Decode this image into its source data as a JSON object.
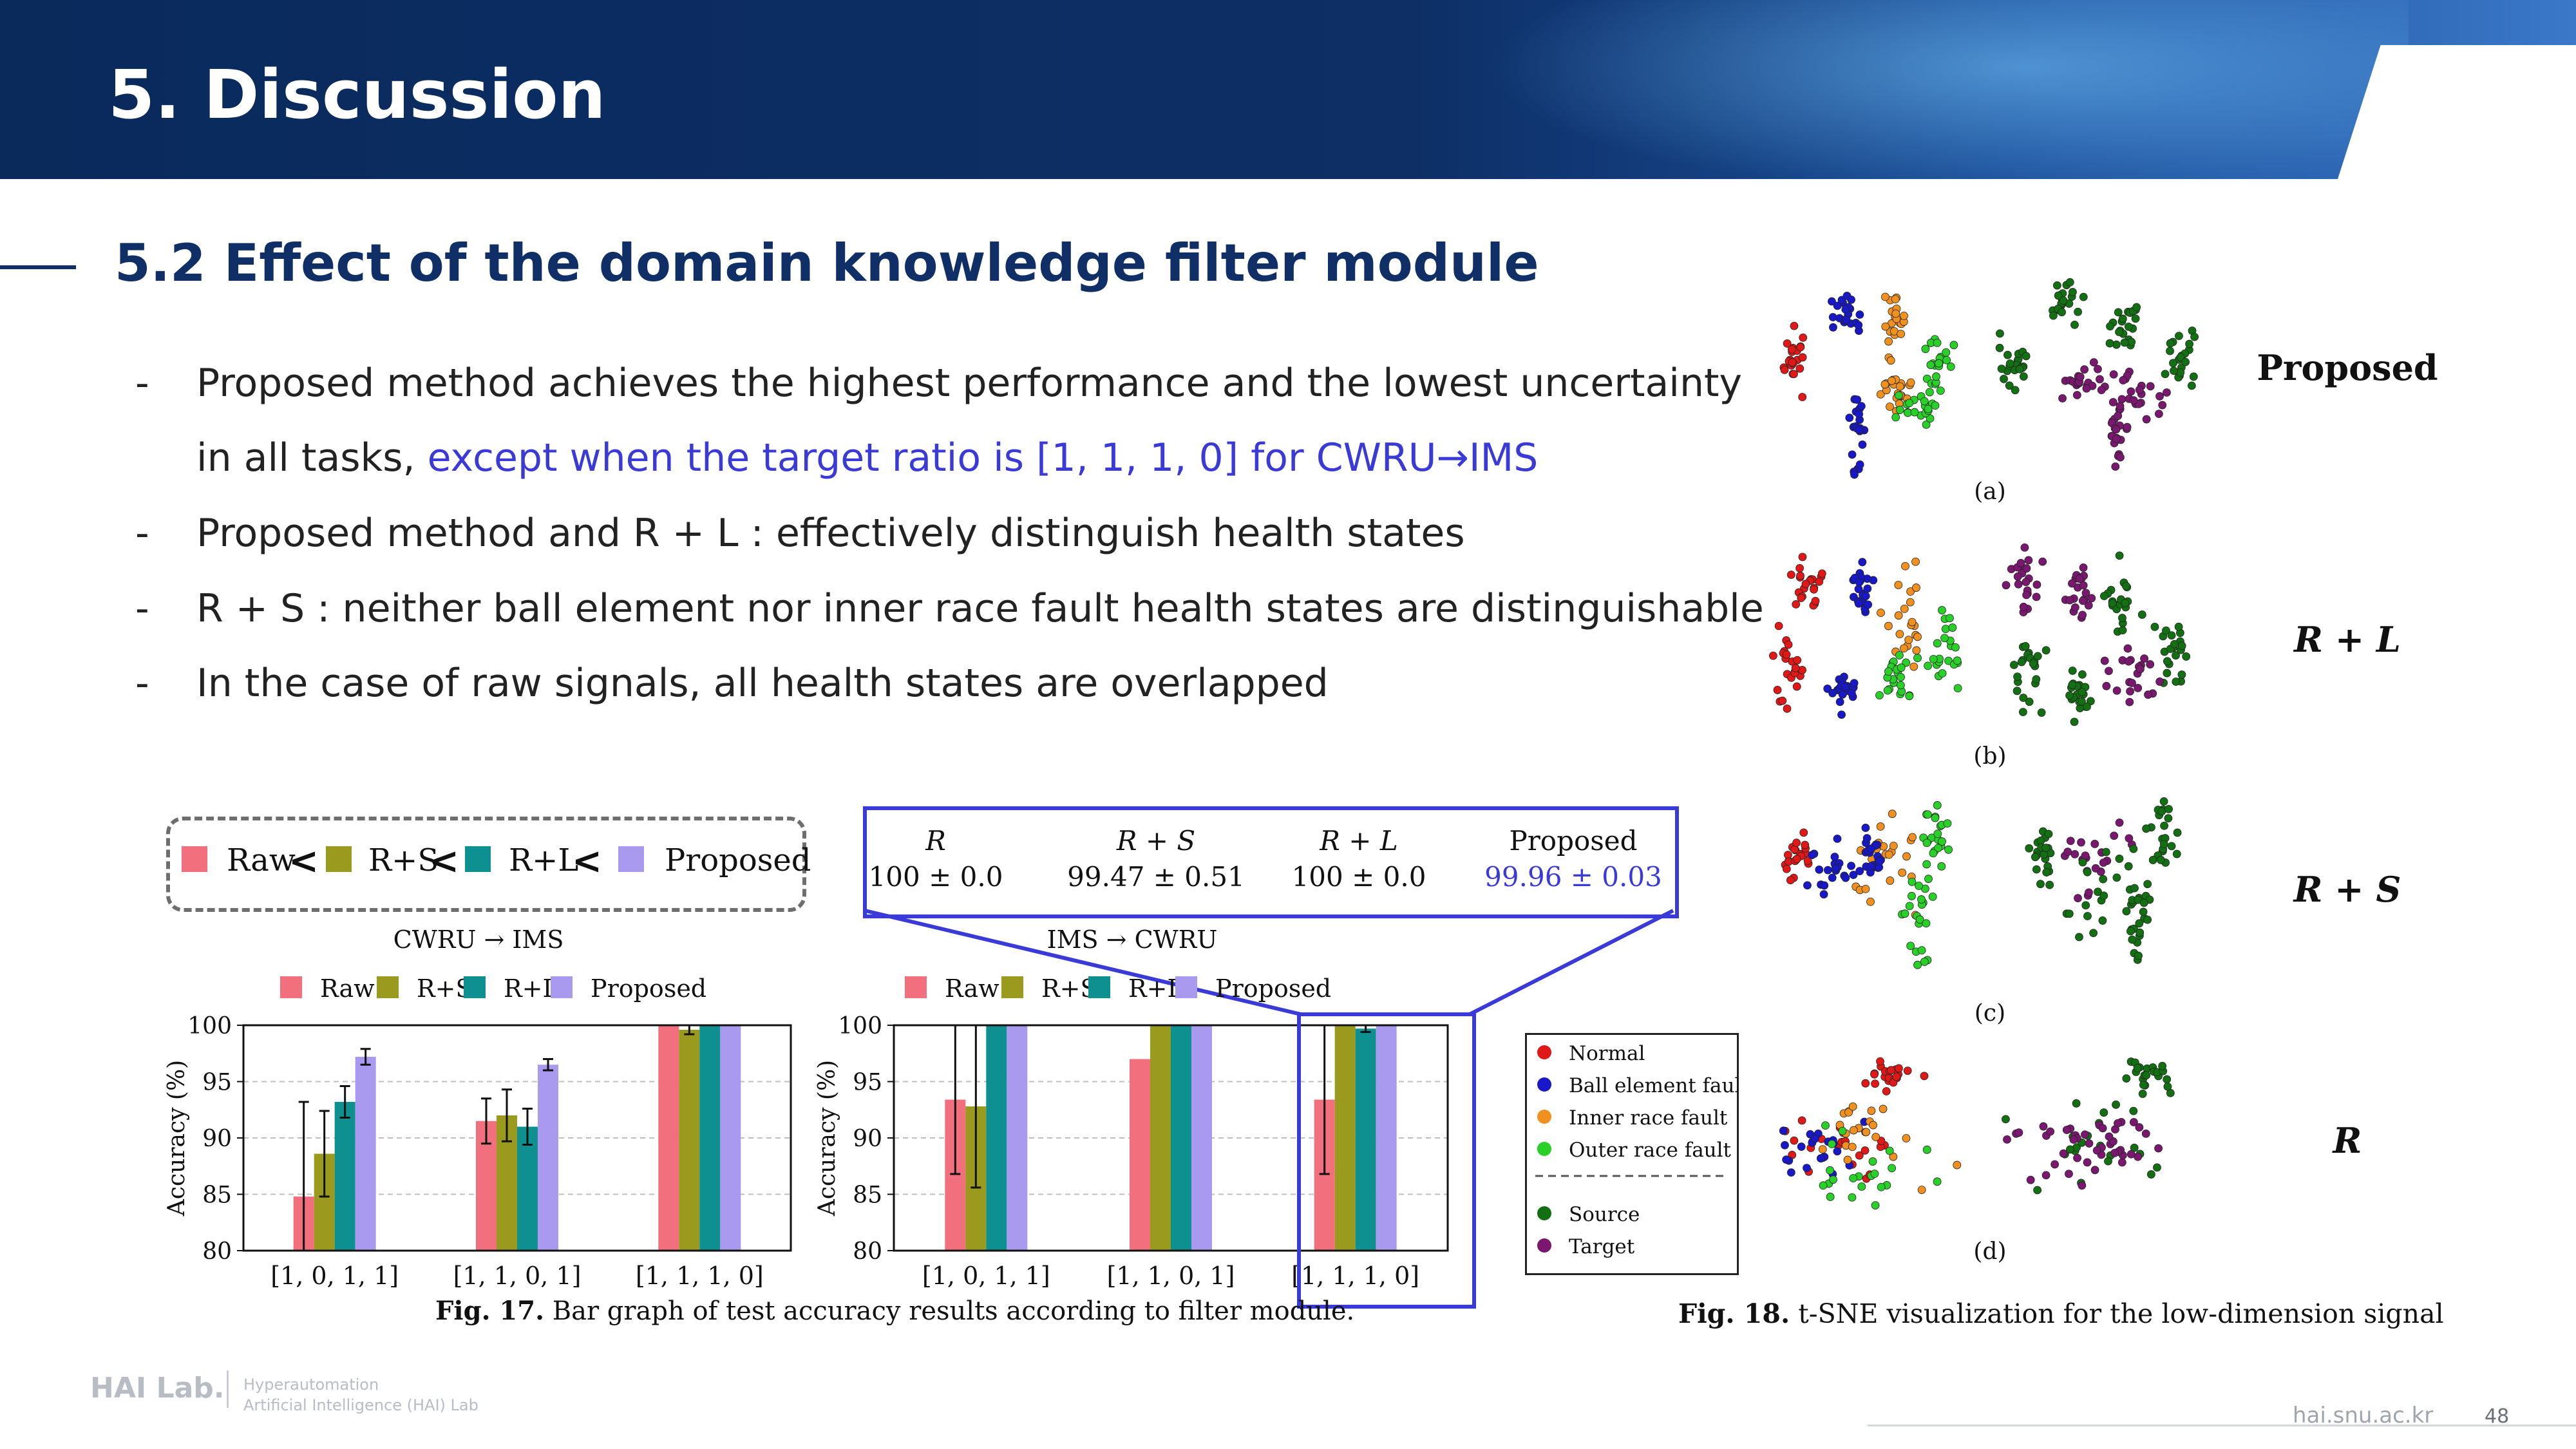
{
  "header": {
    "title": "5. Discussion"
  },
  "section": {
    "title": "5.2 Effect of the domain knowledge filter module"
  },
  "bullets": [
    {
      "marker": "-",
      "text": "Proposed method achieves the highest performance and the lowest uncertainty"
    },
    {
      "marker": "",
      "text": "in all tasks, ",
      "highlight": "except when the target ratio is [1, 1, 1, 0] for CWRU→IMS"
    },
    {
      "marker": "-",
      "text": "Proposed method and R + L : effectively distinguish health states"
    },
    {
      "marker": "-",
      "text": "R + S : neither ball element nor inner race fault health states are distinguishable"
    },
    {
      "marker": "-",
      "text": "In the case of raw signals, all health states are overlapped"
    }
  ],
  "ranking": {
    "items": [
      "Raw",
      "R+S",
      "R+L",
      "Proposed"
    ],
    "separator": "<",
    "colors": [
      "#f2707e",
      "#9a9a1e",
      "#0f9090",
      "#a99af0"
    ]
  },
  "result_table": {
    "headers": [
      "R",
      "R + S",
      "R + L",
      "Proposed"
    ],
    "values": [
      "100 ± 0.0",
      "99.47 ± 0.51",
      "100 ± 0.0",
      "99.96 ± 0.03"
    ],
    "highlight_color": "#3a3ad8"
  },
  "chart_data": [
    {
      "type": "bar",
      "title": "CWRU → IMS",
      "ylabel": "Accuracy (%)",
      "xlabel": "",
      "ylim": [
        80,
        100
      ],
      "yticks": [
        80,
        85,
        90,
        95,
        100
      ],
      "grid": true,
      "legend_position": "top",
      "categories": [
        "[1, 0, 1, 1]",
        "[1, 1, 0, 1]",
        "[1, 1, 1, 0]"
      ],
      "series": [
        {
          "name": "Raw",
          "color": "#f2707e",
          "values": [
            84.8,
            91.5,
            100
          ],
          "errors": [
            8.4,
            2.0,
            0
          ]
        },
        {
          "name": "R+S",
          "color": "#9a9a1e",
          "values": [
            88.6,
            92.0,
            99.6
          ],
          "errors": [
            3.8,
            2.3,
            0.4
          ]
        },
        {
          "name": "R+L",
          "color": "#0f9090",
          "values": [
            93.2,
            91.0,
            100
          ],
          "errors": [
            1.4,
            1.6,
            0
          ]
        },
        {
          "name": "Proposed",
          "color": "#a99af0",
          "values": [
            97.2,
            96.5,
            100
          ],
          "errors": [
            0.7,
            0.5,
            0
          ]
        }
      ]
    },
    {
      "type": "bar",
      "title": "IMS → CWRU",
      "ylabel": "Accuracy (%)",
      "xlabel": "",
      "ylim": [
        80,
        100
      ],
      "yticks": [
        80,
        85,
        90,
        95,
        100
      ],
      "grid": true,
      "legend_position": "top",
      "categories": [
        "[1, 0, 1, 1]",
        "[1, 1, 0, 1]",
        "[1, 1, 1, 0]"
      ],
      "series": [
        {
          "name": "Raw",
          "color": "#f2707e",
          "values": [
            93.4,
            97.0,
            93.4
          ],
          "errors": [
            6.6,
            0,
            6.6
          ]
        },
        {
          "name": "R+S",
          "color": "#9a9a1e",
          "values": [
            92.8,
            100,
            100
          ],
          "errors": [
            7.2,
            0,
            0
          ]
        },
        {
          "name": "R+L",
          "color": "#0f9090",
          "values": [
            100,
            100,
            99.7
          ],
          "errors": [
            0,
            0,
            0.3
          ]
        },
        {
          "name": "Proposed",
          "color": "#a99af0",
          "values": [
            100,
            100,
            100
          ],
          "errors": [
            0,
            0,
            0
          ]
        }
      ]
    }
  ],
  "fig17_caption": {
    "label": "Fig. 17.",
    "text": " Bar graph of test accuracy results according to filter module."
  },
  "tsne": {
    "rows": [
      {
        "label": "Proposed",
        "panel": "(a)",
        "italic": false
      },
      {
        "label": "R + L",
        "panel": "(b)",
        "italic": true
      },
      {
        "label": "R + S",
        "panel": "(c)",
        "italic": true
      },
      {
        "label": "R",
        "panel": "(d)",
        "italic": true
      }
    ],
    "legend": [
      {
        "label": "Normal",
        "color": "#e01818"
      },
      {
        "label": "Ball element fault",
        "color": "#1818c8"
      },
      {
        "label": "Inner race fault",
        "color": "#f0901e"
      },
      {
        "label": "Outer race fault",
        "color": "#28d028"
      },
      {
        "label": "Source",
        "color": "#127012"
      },
      {
        "label": "Target",
        "color": "#7a1870"
      }
    ],
    "caption_label": "Fig. 18.",
    "caption_text": " t-SNE visualization for the low-dimension signal"
  },
  "footer": {
    "logo": "HAI Lab.",
    "sub1": "Hyperautomation",
    "sub2": "Artificial Intelligence (HAI) Lab",
    "url": "hai.snu.ac.kr",
    "page": "48"
  }
}
